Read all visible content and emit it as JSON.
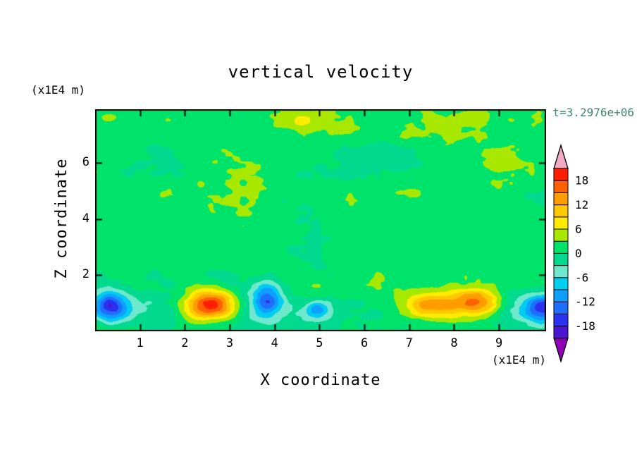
{
  "title": "vertical velocity",
  "timestamp": "t=3.2976e+06",
  "colors": {
    "timestamp": "#3f8573",
    "frame": "#000000"
  },
  "axes": {
    "x_label": "X coordinate",
    "y_label": "Z coordinate",
    "x_unit": "(x1E4 m)",
    "y_unit": "(x1E4 m)",
    "x_ticks": [
      1,
      2,
      3,
      4,
      5,
      6,
      7,
      8,
      9
    ],
    "y_ticks": [
      2,
      4,
      6
    ],
    "x_range": [
      0,
      10.05
    ],
    "y_range": [
      0,
      7.9
    ]
  },
  "colorbar": {
    "min": -21,
    "max": 21,
    "step": 3,
    "labels": [
      18,
      12,
      6,
      0,
      -6,
      -12,
      -18
    ],
    "colors_low_to_high": [
      "#9000b4",
      "#4b14d2",
      "#2a32f0",
      "#1e6eff",
      "#0fa0ff",
      "#00cdf0",
      "#6ee8cd",
      "#00d98e",
      "#00e36a",
      "#a8e800",
      "#ffec00",
      "#ffc800",
      "#ff9c00",
      "#ff6000",
      "#ff1e00",
      "#f2a9c4"
    ]
  },
  "chart_data": {
    "type": "heatmap",
    "subtype": "filled_contour",
    "title": "vertical velocity",
    "xlabel": "X coordinate (x1E4 m)",
    "ylabel": "Z coordinate (x1E4 m)",
    "annotation": "t=3.2976e+06",
    "xlim": [
      0,
      10.05
    ],
    "ylim": [
      0,
      7.9
    ],
    "contour_levels": [
      -21,
      -18,
      -15,
      -12,
      -9,
      -6,
      -3,
      0,
      3,
      6,
      9,
      12,
      15,
      18,
      21
    ],
    "contour_interval": 3,
    "legend_position": "right-colorbar-with-extend-arrows",
    "grid": false,
    "background_mean": 1.2,
    "bottom_layer": {
      "z": 0.75,
      "width": 0.85,
      "amp": -4.5
    },
    "noise": {
      "amplitude": 1.7,
      "seed": 11,
      "octaves": [
        {
          "wavelength": 1.5,
          "amp": 1.0
        },
        {
          "wavelength": 0.7,
          "amp": 0.6
        },
        {
          "wavelength": 0.33,
          "amp": 0.38
        },
        {
          "wavelength": 0.15,
          "amp": 0.2
        }
      ],
      "bands": [
        {
          "z": 1.05,
          "width": 0.85,
          "gain": 1.0
        },
        {
          "z": 5.7,
          "width": 1.0,
          "gain": 0.45
        },
        {
          "z": 7.7,
          "width": 0.5,
          "gain": 0.35
        },
        {
          "z": 3.1,
          "width": 0.9,
          "gain": -0.3
        }
      ]
    },
    "features": [
      {
        "label": "strong-downdraft",
        "x": 0.32,
        "z": 0.85,
        "amp": -16,
        "sx": 0.38,
        "sz": 0.5
      },
      {
        "label": "strong-updraft",
        "x": 2.6,
        "z": 0.95,
        "amp": 23,
        "sx": 0.6,
        "sz": 0.55
      },
      {
        "label": "downdraft",
        "x": 3.85,
        "z": 1.15,
        "amp": -13,
        "sx": 0.32,
        "sz": 0.6
      },
      {
        "label": "downdraft",
        "x": 4.95,
        "z": 0.8,
        "amp": -10,
        "sx": 0.28,
        "sz": 0.35
      },
      {
        "label": "updraft",
        "x": 7.55,
        "z": 0.95,
        "amp": 14,
        "sx": 0.65,
        "sz": 0.5
      },
      {
        "label": "updraft",
        "x": 8.55,
        "z": 1.0,
        "amp": 15,
        "sx": 0.55,
        "sz": 0.5
      },
      {
        "label": "downdraft",
        "x": 9.95,
        "z": 0.9,
        "amp": -15,
        "sx": 0.42,
        "sz": 0.5
      },
      {
        "label": "weak-updraft",
        "x": 0.25,
        "z": 7.6,
        "amp": 4.5,
        "sx": 0.2,
        "sz": 0.18
      },
      {
        "label": "weak-updraft",
        "x": 4.62,
        "z": 7.5,
        "amp": 4.5,
        "sx": 0.22,
        "sz": 0.2
      }
    ]
  }
}
